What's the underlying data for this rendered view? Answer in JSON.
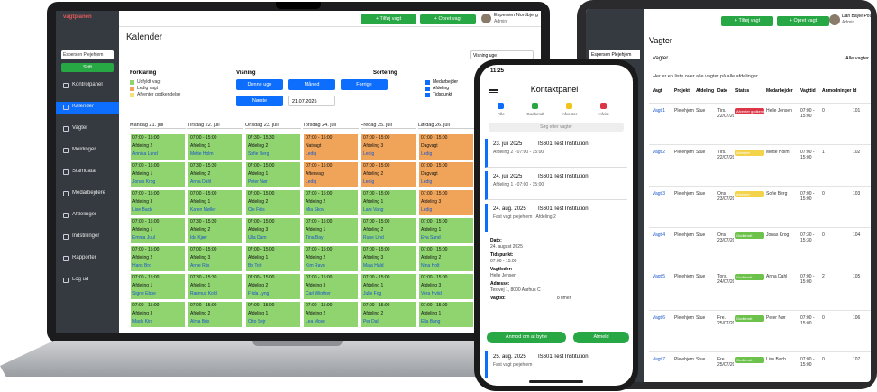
{
  "laptop": {
    "brand": "vagtplanen",
    "sidebar_select": "Espersen Plejehjem",
    "sidebar_button": "Skift",
    "sidebar": [
      "Kontrolpanel",
      "Kalender",
      "Vagter",
      "Meldinger",
      "Stamdata",
      "Medarbejdere",
      "Afdelinger",
      "Indstillinger",
      "Rapporter",
      "Log ud"
    ],
    "header_buttons": [
      "+ Tilføj vagt",
      "+ Opret vagt"
    ],
    "user": "Espersen Nordbjerg",
    "role": "Admin",
    "title": "Kalender",
    "view_select": "Visning uge",
    "legend_title": "Forklaring",
    "legend": [
      {
        "label": "Udfyldt vagt",
        "color": "#8fd46f"
      },
      {
        "label": "Ledig vagt",
        "color": "#f0a45a"
      },
      {
        "label": "Afventer godkendelse",
        "color": "#f3e27a"
      }
    ],
    "view_title": "Visning",
    "view_buttons": [
      "Denne uge",
      "Måned",
      "Forrige",
      "Næste"
    ],
    "date_input": "21.07.2025",
    "sort_title": "Sortering",
    "sort_options": [
      "Medarbejder",
      "Afdeling",
      "Tidspunkt"
    ],
    "days": [
      "Mandag 21. juli",
      "Tirsdag 22. juli",
      "Onsdag 23. juli",
      "Torsdag 24. juli",
      "Fredag 25. juli",
      "Lørdag 26. juli"
    ],
    "palette": {
      "g": "#8fd46f",
      "o": "#f0a45a"
    },
    "cells": [
      [
        {
          "t": "07:00 - 15:00",
          "s": "Afdeling 2",
          "n": "Annika Lund",
          "c": "g"
        },
        {
          "t": "07:00 - 15:00",
          "s": "Afdeling 1",
          "n": "Mette Holm",
          "c": "g"
        },
        {
          "t": "07:30 - 15:30",
          "s": "Afdeling 2",
          "n": "Sofie Berg",
          "c": "g"
        },
        {
          "t": "07:00 - 15:00",
          "s": "Natvagt",
          "n": "Ledig",
          "c": "o"
        },
        {
          "t": "07:00 - 15:00",
          "s": "Afdeling 3",
          "n": "Ledig",
          "c": "o"
        },
        {
          "t": "07:00 - 15:00",
          "s": "Dagvagt",
          "n": "Ledig",
          "c": "o"
        }
      ],
      [
        {
          "t": "07:00 - 15:00",
          "s": "Afdeling 1",
          "n": "Jonas Krog",
          "c": "g"
        },
        {
          "t": "07:30 - 15:30",
          "s": "Afdeling 2",
          "n": "Anna Dahl",
          "c": "g"
        },
        {
          "t": "07:00 - 15:00",
          "s": "Afdeling 1",
          "n": "Peter Nør",
          "c": "g"
        },
        {
          "t": "07:00 - 15:00",
          "s": "Aftenvagt",
          "n": "Ledig",
          "c": "o"
        },
        {
          "t": "07:00 - 15:00",
          "s": "Afdeling 2",
          "n": "Ledig",
          "c": "o"
        },
        {
          "t": "07:00 - 15:00",
          "s": "Dagvagt",
          "n": "Ledig",
          "c": "o"
        }
      ],
      [
        {
          "t": "07:00 - 15:00",
          "s": "Afdeling 3",
          "n": "Lise Bach",
          "c": "g"
        },
        {
          "t": "07:00 - 15:00",
          "s": "Afdeling 1",
          "n": "Karen Møller",
          "c": "g"
        },
        {
          "t": "07:00 - 15:00",
          "s": "Afdeling 2",
          "n": "Ole Friis",
          "c": "g"
        },
        {
          "t": "07:00 - 15:00",
          "s": "Afdeling 2",
          "n": "Mia Skov",
          "c": "g"
        },
        {
          "t": "07:00 - 15:00",
          "s": "Afdeling 1",
          "n": "Lars Vang",
          "c": "g"
        },
        {
          "t": "07:00 - 15:00",
          "s": "Afdeling 3",
          "n": "Ledig",
          "c": "o"
        }
      ],
      [
        {
          "t": "07:00 - 15:00",
          "s": "Afdeling 1",
          "n": "Emma Juul",
          "c": "g"
        },
        {
          "t": "07:30 - 15:30",
          "s": "Afdeling 2",
          "n": "Ida Kjær",
          "c": "g"
        },
        {
          "t": "07:00 - 15:00",
          "s": "Afdeling 3",
          "n": "Ulla Dam",
          "c": "g"
        },
        {
          "t": "07:00 - 15:00",
          "s": "Afdeling 1",
          "n": "Tina Bay",
          "c": "g"
        },
        {
          "t": "07:00 - 15:00",
          "s": "Afdeling 2",
          "n": "Rune Lind",
          "c": "g"
        },
        {
          "t": "07:00 - 15:00",
          "s": "Afdeling 1",
          "n": "Eva Sand",
          "c": "g"
        }
      ],
      [
        {
          "t": "07:00 - 15:00",
          "s": "Afdeling 2",
          "n": "Hans Bro",
          "c": "g"
        },
        {
          "t": "07:00 - 15:00",
          "s": "Afdeling 3",
          "n": "Anne Riis",
          "c": "g"
        },
        {
          "t": "07:00 - 15:00",
          "s": "Afdeling 1",
          "n": "Bo Toft",
          "c": "g"
        },
        {
          "t": "07:00 - 15:00",
          "s": "Afdeling 2",
          "n": "Kim Ravn",
          "c": "g"
        },
        {
          "t": "07:00 - 15:00",
          "s": "Afdeling 3",
          "n": "Maja Hald",
          "c": "g"
        },
        {
          "t": "07:00 - 15:00",
          "s": "Afdeling 2",
          "n": "Nina Holt",
          "c": "g"
        }
      ],
      [
        {
          "t": "07:00 - 15:00",
          "s": "Afdeling 1",
          "n": "Signe Ebbe",
          "c": "g"
        },
        {
          "t": "07:30 - 15:30",
          "s": "Afdeling 1",
          "n": "Rasmus Kold",
          "c": "g"
        },
        {
          "t": "07:00 - 15:00",
          "s": "Afdeling 2",
          "n": "Frida Lyng",
          "c": "g"
        },
        {
          "t": "07:00 - 15:00",
          "s": "Afdeling 3",
          "n": "Carl Winther",
          "c": "g"
        },
        {
          "t": "07:00 - 15:00",
          "s": "Afdeling 1",
          "n": "Julie Fog",
          "c": "g"
        },
        {
          "t": "07:00 - 15:00",
          "s": "Afdeling 3",
          "n": "Vera Hviid",
          "c": "g"
        }
      ],
      [
        {
          "t": "07:00 - 15:00",
          "s": "Afdeling 3",
          "n": "Mads Kirk",
          "c": "g"
        },
        {
          "t": "07:00 - 15:00",
          "s": "Afdeling 2",
          "n": "Alma Brix",
          "c": "g"
        },
        {
          "t": "07:00 - 15:00",
          "s": "Afdeling 1",
          "n": "Otto Sejr",
          "c": "g"
        },
        {
          "t": "07:00 - 15:00",
          "s": "Afdeling 2",
          "n": "Lea Mose",
          "c": "g"
        },
        {
          "t": "07:00 - 15:00",
          "s": "Afdeling 2",
          "n": "Per Dal",
          "c": "g"
        },
        {
          "t": "07:00 - 15:00",
          "s": "Afdeling 1",
          "n": "Ella Bang",
          "c": "g"
        }
      ]
    ]
  },
  "tablet": {
    "header_buttons": [
      "+ Tilføj vagt",
      "+ Opret vagt"
    ],
    "user": "Dan Bayle Poulsen",
    "role": "Admin",
    "sidebar_select": "Espersen Plejehjem",
    "title": "Vagter",
    "section": "Vagter",
    "action": "Alle vagter",
    "notice": "Her er en liste over alle vagter på alle afdelinger.",
    "columns": [
      "Vagt",
      "Projekt",
      "Afdeling",
      "Dato",
      "Status",
      "Medarbejder",
      "Vagttid",
      "Anmodninger",
      "Id"
    ],
    "status_colors": {
      "Afventer godkendelse": "#dc3545",
      "Afventer": "#f3d34a",
      "Godkendt": "#6cc24a"
    },
    "rows": [
      [
        "Vagt 1",
        "Plejehjem",
        "Stue",
        "Tirs. 22/07/2025",
        "Afventer godkendelse",
        "Helle Jensen",
        "07:00 - 15:00",
        "0",
        "101"
      ],
      [
        "Vagt 2",
        "Plejehjem",
        "Stue",
        "Tirs. 22/07/2025",
        "Afventer",
        "Mette Holm",
        "07:00 - 15:00",
        "1",
        "102"
      ],
      [
        "Vagt 3",
        "Plejehjem",
        "Stue",
        "Ons. 23/07/2025",
        "Afventer",
        "Sofie Berg",
        "07:00 - 15:00",
        "0",
        "103"
      ],
      [
        "Vagt 4",
        "Plejehjem",
        "Stue",
        "Ons. 23/07/2025",
        "Godkendt",
        "Jonas Krog",
        "07:30 - 15:30",
        "0",
        "104"
      ],
      [
        "Vagt 5",
        "Plejehjem",
        "Stue",
        "Tors. 24/07/2025",
        "Godkendt",
        "Anna Dahl",
        "07:00 - 15:00",
        "2",
        "105"
      ],
      [
        "Vagt 6",
        "Plejehjem",
        "Stue",
        "Fre. 25/07/2025",
        "Godkendt",
        "Peter Nør",
        "07:00 - 15:00",
        "0",
        "106"
      ],
      [
        "Vagt 7",
        "Plejehjem",
        "Stue",
        "Fre. 25/07/2025",
        "Godkendt",
        "Lise Bach",
        "07:00 - 15:00",
        "0",
        "107"
      ]
    ]
  },
  "phone": {
    "clock": "11:25",
    "title": "Kontaktpanel",
    "tabs": [
      "Alle",
      "Godkendt",
      "Afventer",
      "Afvist"
    ],
    "search": "Søg efter vagter",
    "cards": [
      {
        "date": "23. juli 2025",
        "place": "IS601 Test Institution",
        "info": "Afdeling 2 · 07:00 - 15:00"
      },
      {
        "date": "24. juli 2025",
        "place": "IS601 Test Institution",
        "info": "Afdeling 1 · 07:00 - 15:00"
      },
      {
        "date": "24. aug. 2025",
        "place": "IS601 Test Institution",
        "info": "Fast vagt plejehjem · Afdeling 2"
      }
    ],
    "detail": [
      [
        "Dato:",
        "24. august 2025"
      ],
      [
        "Tidspunkt:",
        "07:00 - 15:00"
      ],
      [
        "Vagtleder:",
        "Helle Jensen"
      ],
      [
        "Adresse:",
        "Testvej 1, 8000 Aarhus C"
      ],
      [
        "Vagtid:",
        "8 timer"
      ]
    ],
    "buttons": [
      "Anmod om at bytte",
      "Afmeld"
    ],
    "last_card": {
      "date": "25. aug. 2025",
      "place": "IS601 Test Institution",
      "info": "Fast vagt plejehjem"
    }
  }
}
